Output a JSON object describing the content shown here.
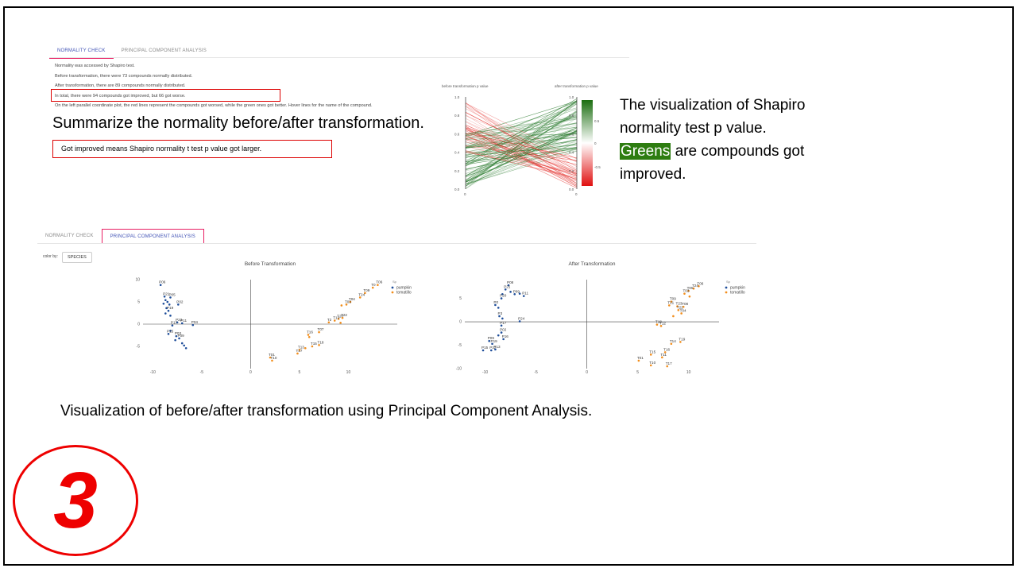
{
  "top_panel": {
    "tabs": [
      {
        "label": "NORMALITY CHECK",
        "active": true
      },
      {
        "label": "PRINCIPAL COMPONENT ANALYSIS",
        "active": false
      }
    ],
    "lines": [
      "Normality was accessed by Shapiro test.",
      "Before transformation, there were 73 compounds normally distributed.",
      "After transformation, there are 89 compounds normally distributed.",
      "In total, there were 94 compounds got improved, but 66 got worse.",
      "On the left parallel coordinate plot, the red lines represent the compounds got worsed, while the green ones got better. Hover lines for the name of the compound."
    ]
  },
  "callouts": {
    "summary": "Summarize the normality before/after transformation.",
    "improved_note": "Got improved means Shapiro normality t test p value got larger.",
    "viz_line1": "The visualization of Shapiro",
    "viz_line2": "normality test p value.",
    "viz_green": "Greens",
    "viz_line3_rest": "are compounds got",
    "viz_line4": "improved.",
    "pca_caption": "Visualization of before/after transformation using Principal Component Analysis.",
    "step_number": "3"
  },
  "parallel_plot": {
    "left_axis_label": "before transformation p value",
    "right_axis_label": "after transformation p value",
    "ticks": [
      "1.0",
      "0.8",
      "0.6",
      "0.4",
      "0.2",
      "0.0"
    ],
    "axis_bottom": "0",
    "colorbar_ticks": [
      "0.5",
      "0",
      "-0.5"
    ],
    "colors": {
      "worse": "#e53935",
      "better": "#2e7d32"
    }
  },
  "bottom_panel": {
    "tabs": [
      {
        "label": "NORMALITY CHECK",
        "active": false
      },
      {
        "label": "PRINCIPAL COMPONENT ANALYSIS",
        "active": true
      }
    ],
    "color_by_label": "color by:",
    "color_by_value": "SPECIES"
  },
  "chart_data": [
    {
      "type": "scatter",
      "title": "Before Transformation",
      "xlim": [
        -11,
        15
      ],
      "ylim": [
        -10,
        10
      ],
      "x_ticks": [
        "-10",
        "-5",
        "0",
        "5",
        "10"
      ],
      "y_ticks": [
        "10",
        "5",
        "0",
        "-5"
      ],
      "legend_title": "Sp",
      "series": [
        {
          "name": "pumpkin",
          "color": "#1f4e9a",
          "points": [
            [
              -9.2,
              8.8,
              "P06"
            ],
            [
              -8.8,
              6.2,
              "P21"
            ],
            [
              -8.2,
              6.0,
              "P05"
            ],
            [
              -8.7,
              5.4,
              ""
            ],
            [
              -8.5,
              5.0,
              ""
            ],
            [
              -8.9,
              4.6,
              ""
            ],
            [
              -8.3,
              4.4,
              ""
            ],
            [
              -7.4,
              4.4,
              "P02"
            ],
            [
              -8.6,
              3.6,
              ""
            ],
            [
              -8.4,
              3.0,
              "P19"
            ],
            [
              -8.7,
              2.4,
              ""
            ],
            [
              -8.2,
              1.9,
              ""
            ],
            [
              -7.5,
              0.4,
              "P23"
            ],
            [
              -7.0,
              0.2,
              "P11"
            ],
            [
              -8.0,
              -0.3,
              "P17"
            ],
            [
              -5.9,
              -0.2,
              "P04"
            ],
            [
              -8.2,
              -1.5,
              ""
            ],
            [
              -8.4,
              -2.2,
              "P15"
            ],
            [
              -7.6,
              -2.7,
              "P03"
            ],
            [
              -7.3,
              -3.2,
              "P09"
            ],
            [
              -7.7,
              -3.6,
              ""
            ],
            [
              -7.0,
              -4.3,
              ""
            ],
            [
              -6.8,
              -4.8,
              ""
            ],
            [
              -6.6,
              -5.4,
              ""
            ]
          ]
        },
        {
          "name": "tomatillo",
          "color": "#f28e1c",
          "points": [
            [
              13.0,
              8.8,
              "T06"
            ],
            [
              12.5,
              8.2,
              "T0"
            ],
            [
              11.7,
              7.0,
              "T09"
            ],
            [
              11.2,
              6.0,
              "T24"
            ],
            [
              10.2,
              5.0,
              "T04"
            ],
            [
              9.8,
              4.4,
              "T03"
            ],
            [
              9.3,
              4.2,
              ""
            ],
            [
              9.0,
              1.2,
              "T20"
            ],
            [
              9.4,
              1.4,
              "T22"
            ],
            [
              8.6,
              0.8,
              "T12"
            ],
            [
              8.0,
              0.4,
              "T2"
            ],
            [
              9.2,
              0.3,
              ""
            ],
            [
              7.0,
              -1.8,
              "T07"
            ],
            [
              5.9,
              -2.4,
              "T16"
            ],
            [
              6.0,
              -2.9,
              ""
            ],
            [
              7.0,
              -4.7,
              "T18"
            ],
            [
              6.3,
              -5.0,
              "T15"
            ],
            [
              5.6,
              -5.4,
              ""
            ],
            [
              5.0,
              -5.8,
              "T13"
            ],
            [
              4.8,
              -6.6,
              "T17"
            ],
            [
              2.0,
              -7.5,
              "T01"
            ],
            [
              2.2,
              -8.2,
              "T10"
            ]
          ]
        }
      ]
    },
    {
      "type": "scatter",
      "title": "After Transformation",
      "xlim": [
        -12,
        13
      ],
      "ylim": [
        -10,
        9
      ],
      "x_ticks": [
        "-10",
        "-5",
        "0",
        "5",
        "10"
      ],
      "y_ticks": [
        "5",
        "0",
        "-5",
        "-10"
      ],
      "legend_title": "Sp",
      "series": [
        {
          "name": "pumpkin",
          "color": "#1f4e9a",
          "points": [
            [
              -7.7,
              7.8,
              "P08"
            ],
            [
              -8.0,
              6.9,
              "P21"
            ],
            [
              -7.5,
              6.4,
              ""
            ],
            [
              -7.1,
              5.9,
              "P09"
            ],
            [
              -6.6,
              6.0,
              ""
            ],
            [
              -6.2,
              5.5,
              "P11"
            ],
            [
              -8.3,
              5.9,
              ""
            ],
            [
              -8.4,
              5.0,
              "P20"
            ],
            [
              -9.0,
              3.6,
              "P0"
            ],
            [
              -8.7,
              3.0,
              ""
            ],
            [
              -8.6,
              1.2,
              "P3"
            ],
            [
              -8.3,
              0.7,
              ""
            ],
            [
              -6.6,
              0.1,
              "P24"
            ],
            [
              -8.4,
              -0.8,
              "P17"
            ],
            [
              -8.4,
              -2.3,
              "P02"
            ],
            [
              -8.7,
              -2.9,
              ""
            ],
            [
              -8.2,
              -3.7,
              "P16"
            ],
            [
              -9.6,
              -4.1,
              "P09"
            ],
            [
              -9.3,
              -4.7,
              "P19"
            ],
            [
              -10.2,
              -6.1,
              "P15"
            ],
            [
              -9.4,
              -6.1,
              "P12"
            ],
            [
              -9.0,
              -5.9,
              "P13"
            ]
          ]
        },
        {
          "name": "tomatillo",
          "color": "#f28e1c",
          "points": [
            [
              11.0,
              7.6,
              "T06"
            ],
            [
              10.5,
              7.1,
              "T24"
            ],
            [
              10.0,
              6.6,
              "T05"
            ],
            [
              9.6,
              6.0,
              "T03"
            ],
            [
              10.1,
              5.4,
              ""
            ],
            [
              8.3,
              4.3,
              "T09"
            ],
            [
              8.1,
              3.5,
              "T21"
            ],
            [
              8.9,
              3.3,
              "T23"
            ],
            [
              9.5,
              3.2,
              "T08"
            ],
            [
              9.0,
              2.5,
              "T22"
            ],
            [
              9.3,
              1.8,
              "T04"
            ],
            [
              8.5,
              1.2,
              ""
            ],
            [
              6.9,
              -0.6,
              "T18"
            ],
            [
              7.3,
              -0.9,
              "T12"
            ],
            [
              9.2,
              -4.3,
              "T19"
            ],
            [
              8.3,
              -4.7,
              "T14"
            ],
            [
              7.7,
              -6.5,
              "T16"
            ],
            [
              6.3,
              -7.0,
              "T15"
            ],
            [
              7.4,
              -7.6,
              "T11"
            ],
            [
              5.1,
              -8.3,
              "T01"
            ],
            [
              6.3,
              -9.3,
              "T10"
            ],
            [
              7.9,
              -9.5,
              "T17"
            ]
          ]
        }
      ]
    }
  ]
}
